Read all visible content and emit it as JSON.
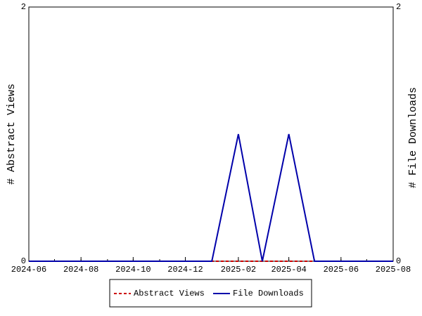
{
  "chart_data": {
    "type": "line",
    "x": [
      "2024-06",
      "2024-07",
      "2024-08",
      "2024-09",
      "2024-10",
      "2024-11",
      "2024-12",
      "2025-01",
      "2025-02",
      "2025-03",
      "2025-04",
      "2025-05",
      "2025-06",
      "2025-07",
      "2025-08"
    ],
    "series": [
      {
        "name": "Abstract Views",
        "color": "#cc0000",
        "dash": true,
        "axis": "y",
        "values": [
          0,
          0,
          0,
          0,
          0,
          0,
          0,
          0,
          0,
          0,
          0,
          0,
          0,
          0,
          0
        ]
      },
      {
        "name": "File Downloads",
        "color": "#0000aa",
        "dash": false,
        "axis": "y2",
        "values": [
          0,
          0,
          0,
          0,
          0,
          0,
          0,
          0,
          1,
          0,
          1,
          0,
          0,
          0,
          0
        ]
      }
    ],
    "xlim": [
      "2024-06",
      "2025-08"
    ],
    "xticks": [
      "2024-06",
      "2024-08",
      "2024-10",
      "2024-12",
      "2025-02",
      "2025-04",
      "2025-06",
      "2025-08"
    ],
    "ylabel": "# Abstract Views",
    "ylim": [
      0,
      2
    ],
    "yticks": [
      0,
      2
    ],
    "y2label": "# File Downloads",
    "y2lim": [
      0,
      2
    ],
    "y2ticks": [
      0,
      2
    ],
    "legend": "bottom"
  }
}
